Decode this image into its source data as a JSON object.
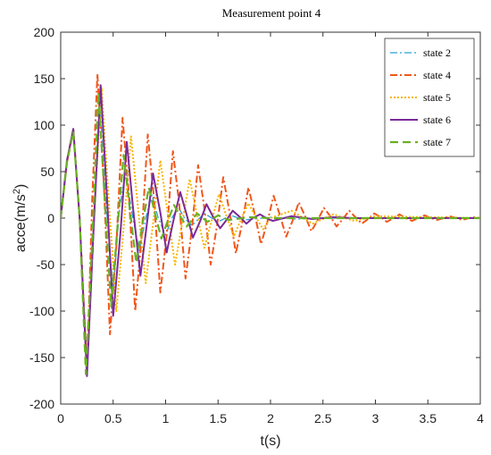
{
  "chart_data": {
    "type": "line",
    "title": "Measurement point 4",
    "xlabel": "t(s)",
    "ylabel_main": "acce(m/s",
    "ylabel_sup": "2",
    "ylabel_tail": ")",
    "xlim": [
      0,
      4
    ],
    "ylim": [
      -200,
      200
    ],
    "xticks": [
      0,
      0.5,
      1,
      1.5,
      2,
      2.5,
      3,
      3.5,
      4
    ],
    "xtick_labels": [
      "0",
      "0.5",
      "1",
      "1.5",
      "2",
      "2.5",
      "3",
      "3.5",
      "4"
    ],
    "yticks": [
      200,
      150,
      100,
      50,
      0,
      -50,
      -100,
      -150,
      -200
    ],
    "ytick_labels": [
      "200",
      "150",
      "100",
      "50",
      "0",
      "-50",
      "-100",
      "-150",
      "-200"
    ],
    "grid": false,
    "legend_position": "top-right",
    "series": [
      {
        "name": "state 2",
        "color": "#2a9fd6",
        "dash": "8,3,2,3",
        "width": 1.3,
        "x": [
          0,
          0.06,
          0.12,
          0.18,
          0.25,
          0.31,
          0.37,
          0.43,
          0.5,
          0.56,
          0.62,
          0.68,
          0.75,
          0.81,
          0.87,
          0.93,
          1.0,
          1.06,
          1.12,
          1.18,
          1.25,
          1.37,
          1.5,
          1.62,
          1.75,
          2.0,
          2.25,
          2.5,
          3.0,
          3.5,
          4.0
        ],
        "y": [
          0,
          60,
          95,
          0,
          -170,
          -30,
          130,
          20,
          -80,
          10,
          50,
          5,
          -35,
          0,
          25,
          0,
          -18,
          0,
          12,
          0,
          -8,
          5,
          -4,
          3,
          -2,
          1,
          -1,
          0,
          0,
          0,
          0
        ]
      },
      {
        "name": "state 4",
        "color": "#f0571b",
        "dash": "8,3,2,3",
        "width": 2,
        "x": [
          0,
          0.06,
          0.12,
          0.18,
          0.25,
          0.3,
          0.35,
          0.41,
          0.47,
          0.53,
          0.59,
          0.65,
          0.71,
          0.77,
          0.83,
          0.89,
          0.95,
          1.01,
          1.07,
          1.13,
          1.19,
          1.25,
          1.31,
          1.37,
          1.43,
          1.49,
          1.55,
          1.61,
          1.67,
          1.73,
          1.79,
          1.85,
          1.91,
          1.97,
          2.03,
          2.09,
          2.15,
          2.21,
          2.27,
          2.33,
          2.39,
          2.45,
          2.51,
          2.57,
          2.63,
          2.69,
          2.75,
          2.81,
          2.87,
          2.93,
          2.99,
          3.05,
          3.11,
          3.17,
          3.23,
          3.29,
          3.35,
          3.41,
          3.47,
          3.53,
          3.59,
          3.65,
          3.71,
          3.77,
          3.83,
          3.89,
          3.95,
          4.0
        ],
        "y": [
          0,
          60,
          95,
          0,
          -165,
          20,
          155,
          40,
          -125,
          -30,
          108,
          25,
          -100,
          -22,
          90,
          20,
          -80,
          -18,
          72,
          15,
          -65,
          -12,
          57,
          10,
          -50,
          -8,
          44,
          6,
          -38,
          -5,
          33,
          4,
          -28,
          -4,
          24,
          3,
          -20,
          -3,
          17,
          2,
          -14,
          -2,
          11,
          2,
          -9,
          -1,
          8,
          1,
          -6,
          -1,
          5,
          1,
          -4,
          0,
          4,
          0,
          -3,
          0,
          3,
          0,
          -2,
          0,
          2,
          0,
          -2,
          0,
          1,
          0
        ]
      },
      {
        "name": "state 5",
        "color": "#f7b500",
        "dash": "2,2",
        "width": 2,
        "x": [
          0,
          0.06,
          0.12,
          0.18,
          0.25,
          0.32,
          0.39,
          0.46,
          0.53,
          0.6,
          0.67,
          0.74,
          0.81,
          0.88,
          0.95,
          1.02,
          1.09,
          1.16,
          1.23,
          1.3,
          1.37,
          1.44,
          1.51,
          1.58,
          1.65,
          1.72,
          1.79,
          1.86,
          1.93,
          2.0,
          2.2,
          2.4,
          2.6,
          2.8,
          3.0,
          3.5,
          4.0
        ],
        "y": [
          0,
          60,
          95,
          0,
          -160,
          10,
          140,
          15,
          -100,
          -10,
          88,
          8,
          -70,
          -6,
          62,
          5,
          -50,
          -4,
          42,
          3,
          -32,
          -2,
          26,
          2,
          -20,
          -1,
          16,
          1,
          -12,
          0,
          8,
          -6,
          4,
          -3,
          2,
          1,
          0
        ]
      },
      {
        "name": "state 6",
        "color": "#7b2a98",
        "dash": "",
        "width": 2,
        "x": [
          0,
          0.06,
          0.12,
          0.18,
          0.25,
          0.31,
          0.38,
          0.44,
          0.5,
          0.57,
          0.63,
          0.69,
          0.76,
          0.82,
          0.88,
          0.95,
          1.01,
          1.07,
          1.14,
          1.2,
          1.26,
          1.33,
          1.39,
          1.45,
          1.52,
          1.58,
          1.64,
          1.71,
          1.77,
          1.83,
          1.9,
          1.96,
          2.02,
          2.2,
          2.4,
          2.6,
          2.8,
          3.0,
          3.5,
          4.0
        ],
        "y": [
          0,
          62,
          96,
          0,
          -170,
          -20,
          143,
          25,
          -105,
          -15,
          82,
          10,
          -62,
          -8,
          48,
          6,
          -37,
          -5,
          28,
          4,
          -21,
          -3,
          15,
          2,
          -11,
          -2,
          8,
          1,
          -6,
          0,
          4,
          0,
          -3,
          2,
          -1,
          1,
          0,
          0,
          0,
          0
        ]
      },
      {
        "name": "state 7",
        "color": "#6ab023",
        "dash": "9,5",
        "width": 2.2,
        "x": [
          0,
          0.06,
          0.12,
          0.18,
          0.24,
          0.3,
          0.36,
          0.42,
          0.48,
          0.54,
          0.6,
          0.66,
          0.72,
          0.78,
          0.84,
          0.9,
          0.96,
          1.02,
          1.08,
          1.14,
          1.2,
          1.3,
          1.4,
          1.5,
          1.6,
          1.8,
          2.0,
          2.3,
          2.6,
          3.0,
          3.5,
          4.0
        ],
        "y": [
          0,
          60,
          93,
          0,
          -168,
          -25,
          135,
          20,
          -95,
          -12,
          68,
          8,
          -48,
          -6,
          33,
          4,
          -22,
          -3,
          14,
          2,
          -9,
          5,
          -4,
          3,
          -2,
          1,
          0,
          0,
          0,
          0,
          0,
          0
        ]
      }
    ]
  }
}
